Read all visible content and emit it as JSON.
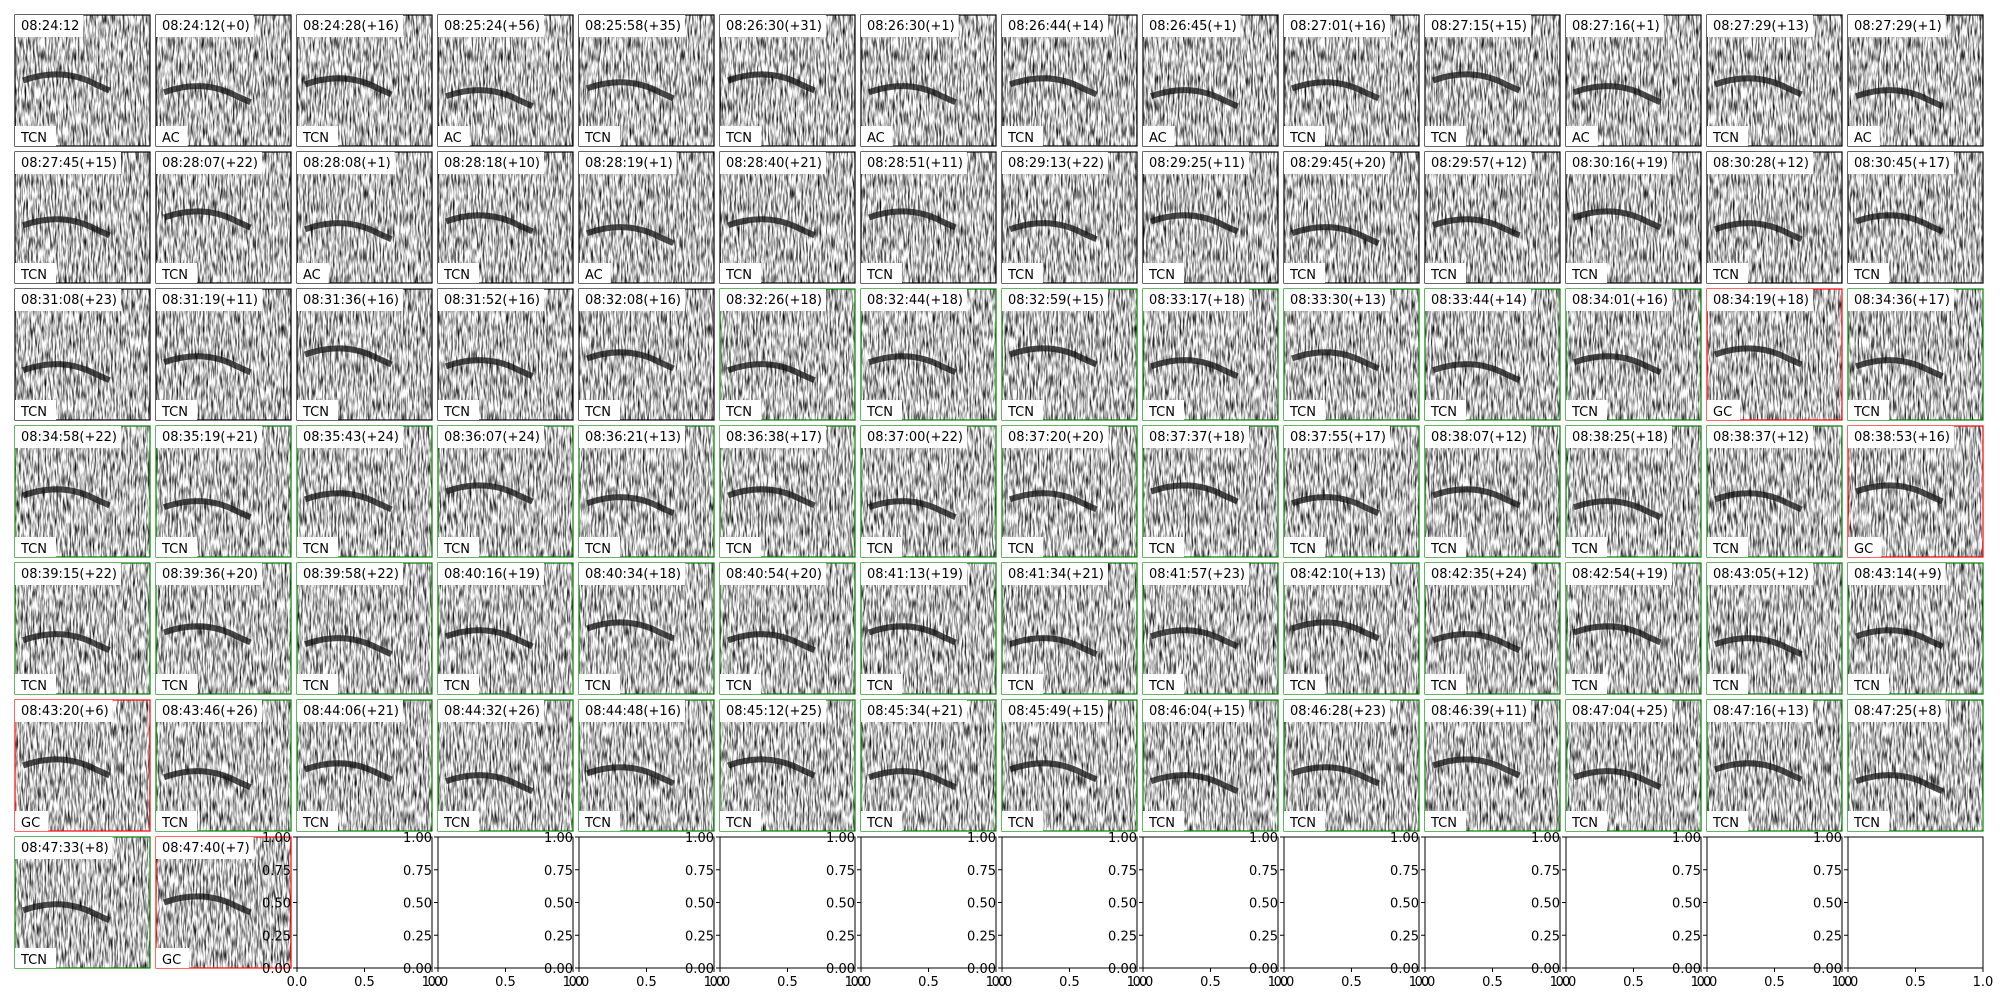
{
  "panels": [
    [
      [
        "08:24:12",
        "TCN",
        "black"
      ],
      [
        "08:24:12(+0)",
        "AC",
        "black"
      ],
      [
        "08:24:28(+16)",
        "TCN",
        "black"
      ],
      [
        "08:25:24(+56)",
        "AC",
        "black"
      ],
      [
        "08:25:58(+35)",
        "TCN",
        "black"
      ],
      [
        "08:26:30(+31)",
        "TCN",
        "black"
      ],
      [
        "08:26:30(+1)",
        "AC",
        "black"
      ],
      [
        "08:26:44(+14)",
        "TCN",
        "black"
      ],
      [
        "08:26:45(+1)",
        "AC",
        "black"
      ],
      [
        "08:27:01(+16)",
        "TCN",
        "black"
      ],
      [
        "08:27:15(+15)",
        "TCN",
        "black"
      ],
      [
        "08:27:16(+1)",
        "AC",
        "black"
      ],
      [
        "08:27:29(+13)",
        "TCN",
        "black"
      ],
      [
        "08:27:29(+1)",
        "AC",
        "black"
      ]
    ],
    [
      [
        "08:27:45(+15)",
        "TCN",
        "black"
      ],
      [
        "08:28:07(+22)",
        "TCN",
        "black"
      ],
      [
        "08:28:08(+1)",
        "AC",
        "black"
      ],
      [
        "08:28:18(+10)",
        "TCN",
        "black"
      ],
      [
        "08:28:19(+1)",
        "AC",
        "black"
      ],
      [
        "08:28:40(+21)",
        "TCN",
        "black"
      ],
      [
        "08:28:51(+11)",
        "TCN",
        "black"
      ],
      [
        "08:29:13(+22)",
        "TCN",
        "black"
      ],
      [
        "08:29:25(+11)",
        "TCN",
        "black"
      ],
      [
        "08:29:45(+20)",
        "TCN",
        "black"
      ],
      [
        "08:29:57(+12)",
        "TCN",
        "black"
      ],
      [
        "08:30:16(+19)",
        "TCN",
        "black"
      ],
      [
        "08:30:28(+12)",
        "TCN",
        "black"
      ],
      [
        "08:30:45(+17)",
        "TCN",
        "black"
      ]
    ],
    [
      [
        "08:31:08(+23)",
        "TCN",
        "black"
      ],
      [
        "08:31:19(+11)",
        "TCN",
        "black"
      ],
      [
        "08:31:36(+16)",
        "TCN",
        "black"
      ],
      [
        "08:31:52(+16)",
        "TCN",
        "black"
      ],
      [
        "08:32:08(+16)",
        "TCN",
        "black"
      ],
      [
        "08:32:26(+18)",
        "TCN",
        "green"
      ],
      [
        "08:32:44(+18)",
        "TCN",
        "green"
      ],
      [
        "08:32:59(+15)",
        "TCN",
        "green"
      ],
      [
        "08:33:17(+18)",
        "TCN",
        "green"
      ],
      [
        "08:33:30(+13)",
        "TCN",
        "green"
      ],
      [
        "08:33:44(+14)",
        "TCN",
        "green"
      ],
      [
        "08:34:01(+16)",
        "TCN",
        "green"
      ],
      [
        "08:34:19(+18)",
        "GC",
        "red"
      ],
      [
        "08:34:36(+17)",
        "TCN",
        "green"
      ]
    ],
    [
      [
        "08:34:58(+22)",
        "TCN",
        "green"
      ],
      [
        "08:35:19(+21)",
        "TCN",
        "green"
      ],
      [
        "08:35:43(+24)",
        "TCN",
        "green"
      ],
      [
        "08:36:07(+24)",
        "TCN",
        "green"
      ],
      [
        "08:36:21(+13)",
        "TCN",
        "green"
      ],
      [
        "08:36:38(+17)",
        "TCN",
        "green"
      ],
      [
        "08:37:00(+22)",
        "TCN",
        "green"
      ],
      [
        "08:37:20(+20)",
        "TCN",
        "green"
      ],
      [
        "08:37:37(+18)",
        "TCN",
        "green"
      ],
      [
        "08:37:55(+17)",
        "TCN",
        "green"
      ],
      [
        "08:38:07(+12)",
        "TCN",
        "green"
      ],
      [
        "08:38:25(+18)",
        "TCN",
        "green"
      ],
      [
        "08:38:37(+12)",
        "TCN",
        "green"
      ],
      [
        "08:38:53(+16)",
        "GC",
        "red"
      ]
    ],
    [
      [
        "08:39:15(+22)",
        "TCN",
        "green"
      ],
      [
        "08:39:36(+20)",
        "TCN",
        "green"
      ],
      [
        "08:39:58(+22)",
        "TCN",
        "green"
      ],
      [
        "08:40:16(+19)",
        "TCN",
        "green"
      ],
      [
        "08:40:34(+18)",
        "TCN",
        "green"
      ],
      [
        "08:40:54(+20)",
        "TCN",
        "green"
      ],
      [
        "08:41:13(+19)",
        "TCN",
        "green"
      ],
      [
        "08:41:34(+21)",
        "TCN",
        "green"
      ],
      [
        "08:41:57(+23)",
        "TCN",
        "green"
      ],
      [
        "08:42:10(+13)",
        "TCN",
        "green"
      ],
      [
        "08:42:35(+24)",
        "TCN",
        "green"
      ],
      [
        "08:42:54(+19)",
        "TCN",
        "green"
      ],
      [
        "08:43:05(+12)",
        "TCN",
        "green"
      ],
      [
        "08:43:14(+9)",
        "TCN",
        "green"
      ]
    ],
    [
      [
        "08:43:20(+6)",
        "GC",
        "red"
      ],
      [
        "08:43:46(+26)",
        "TCN",
        "green"
      ],
      [
        "08:44:06(+21)",
        "TCN",
        "green"
      ],
      [
        "08:44:32(+26)",
        "TCN",
        "green"
      ],
      [
        "08:44:48(+16)",
        "TCN",
        "green"
      ],
      [
        "08:45:12(+25)",
        "TCN",
        "green"
      ],
      [
        "08:45:34(+21)",
        "TCN",
        "green"
      ],
      [
        "08:45:49(+15)",
        "TCN",
        "green"
      ],
      [
        "08:46:04(+15)",
        "TCN",
        "green"
      ],
      [
        "08:46:28(+23)",
        "TCN",
        "green"
      ],
      [
        "08:46:39(+11)",
        "TCN",
        "green"
      ],
      [
        "08:47:04(+25)",
        "TCN",
        "green"
      ],
      [
        "08:47:16(+13)",
        "TCN",
        "green"
      ],
      [
        "08:47:25(+8)",
        "TCN",
        "green"
      ]
    ],
    [
      [
        "08:47:33(+8)",
        "TCN",
        "green"
      ],
      [
        "08:47:40(+7)",
        "GC",
        "red"
      ]
    ]
  ],
  "empty_axes": {
    "xticks": [
      {
        "value": 0,
        "label": "0.0"
      },
      {
        "value": 0.5,
        "label": "0.5"
      },
      {
        "value": 1,
        "label": "1.0"
      }
    ],
    "yticks": [
      {
        "value": 0,
        "label": "0.00"
      },
      {
        "value": 0.25,
        "label": "0.25"
      },
      {
        "value": 0.5,
        "label": "0.50"
      },
      {
        "value": 0.75,
        "label": "0.75"
      },
      {
        "value": 1,
        "label": "1.00"
      }
    ]
  }
}
